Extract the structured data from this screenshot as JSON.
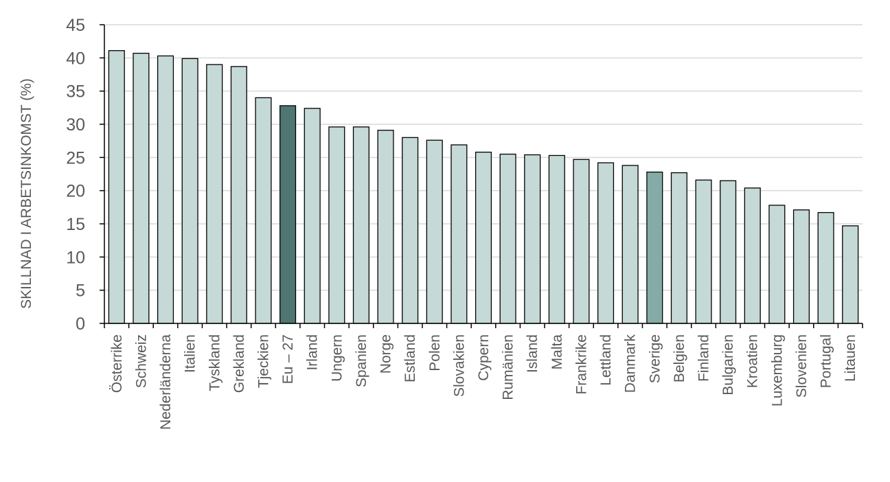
{
  "chart_data": {
    "type": "bar",
    "title": "",
    "xlabel": "",
    "ylabel": "SKILLNAD I ARBETSINKOMST (%)",
    "ylim": [
      0,
      45
    ],
    "yticks": [
      0,
      5,
      10,
      15,
      20,
      25,
      30,
      35,
      40,
      45
    ],
    "grid": true,
    "legend": "none",
    "categories": [
      "Österrike",
      "Schweiz",
      "Nederländerna",
      "Italien",
      "Tyskland",
      "Grekland",
      "Tjeckien",
      "Eu – 27",
      "Irland",
      "Ungern",
      "Spanien",
      "Norge",
      "Estland",
      "Polen",
      "Slovakien",
      "Cypern",
      "Rumänien",
      "Island",
      "Malta",
      "Frankrike",
      "Lettland",
      "Danmark",
      "Sverige",
      "Belgien",
      "Finland",
      "Bulgarien",
      "Kroatien",
      "Luxemburg",
      "Slovenien",
      "Portugal",
      "Litauen"
    ],
    "values": [
      41.1,
      40.7,
      40.3,
      39.9,
      39.0,
      38.7,
      34.0,
      32.8,
      32.4,
      29.6,
      29.6,
      29.1,
      28.0,
      27.6,
      26.9,
      25.8,
      25.5,
      25.4,
      25.3,
      24.7,
      24.2,
      23.8,
      22.8,
      22.7,
      21.6,
      21.5,
      20.4,
      17.8,
      17.1,
      16.7,
      14.7
    ],
    "bar_colors": [
      "#c5d9d6",
      "#c5d9d6",
      "#c5d9d6",
      "#c5d9d6",
      "#c5d9d6",
      "#c5d9d6",
      "#c5d9d6",
      "#4f7672",
      "#c5d9d6",
      "#c5d9d6",
      "#c5d9d6",
      "#c5d9d6",
      "#c5d9d6",
      "#c5d9d6",
      "#c5d9d6",
      "#c5d9d6",
      "#c5d9d6",
      "#c5d9d6",
      "#c5d9d6",
      "#c5d9d6",
      "#c5d9d6",
      "#c5d9d6",
      "#85aba6",
      "#c5d9d6",
      "#c5d9d6",
      "#c5d9d6",
      "#c5d9d6",
      "#c5d9d6",
      "#c5d9d6",
      "#c5d9d6",
      "#c5d9d6"
    ]
  }
}
